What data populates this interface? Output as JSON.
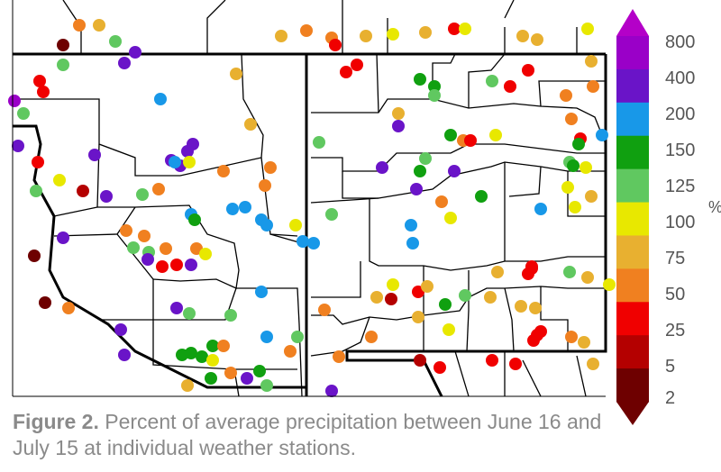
{
  "legend": {
    "unit": "%",
    "ticks": [
      "800",
      "400",
      "200",
      "150",
      "125",
      "100",
      "75",
      "50",
      "25",
      "5",
      "2"
    ],
    "colors": [
      "#9a00c8",
      "#6a14c8",
      "#1898e8",
      "#10a010",
      "#60c860",
      "#e8e800",
      "#e8b030",
      "#f08020",
      "#f00000",
      "#b40000",
      "#6e0000"
    ]
  },
  "caption": {
    "label": "Figure 2.",
    "text": " Percent of average precipitation between June 16 and July 15 at individual weather stations."
  }
}
